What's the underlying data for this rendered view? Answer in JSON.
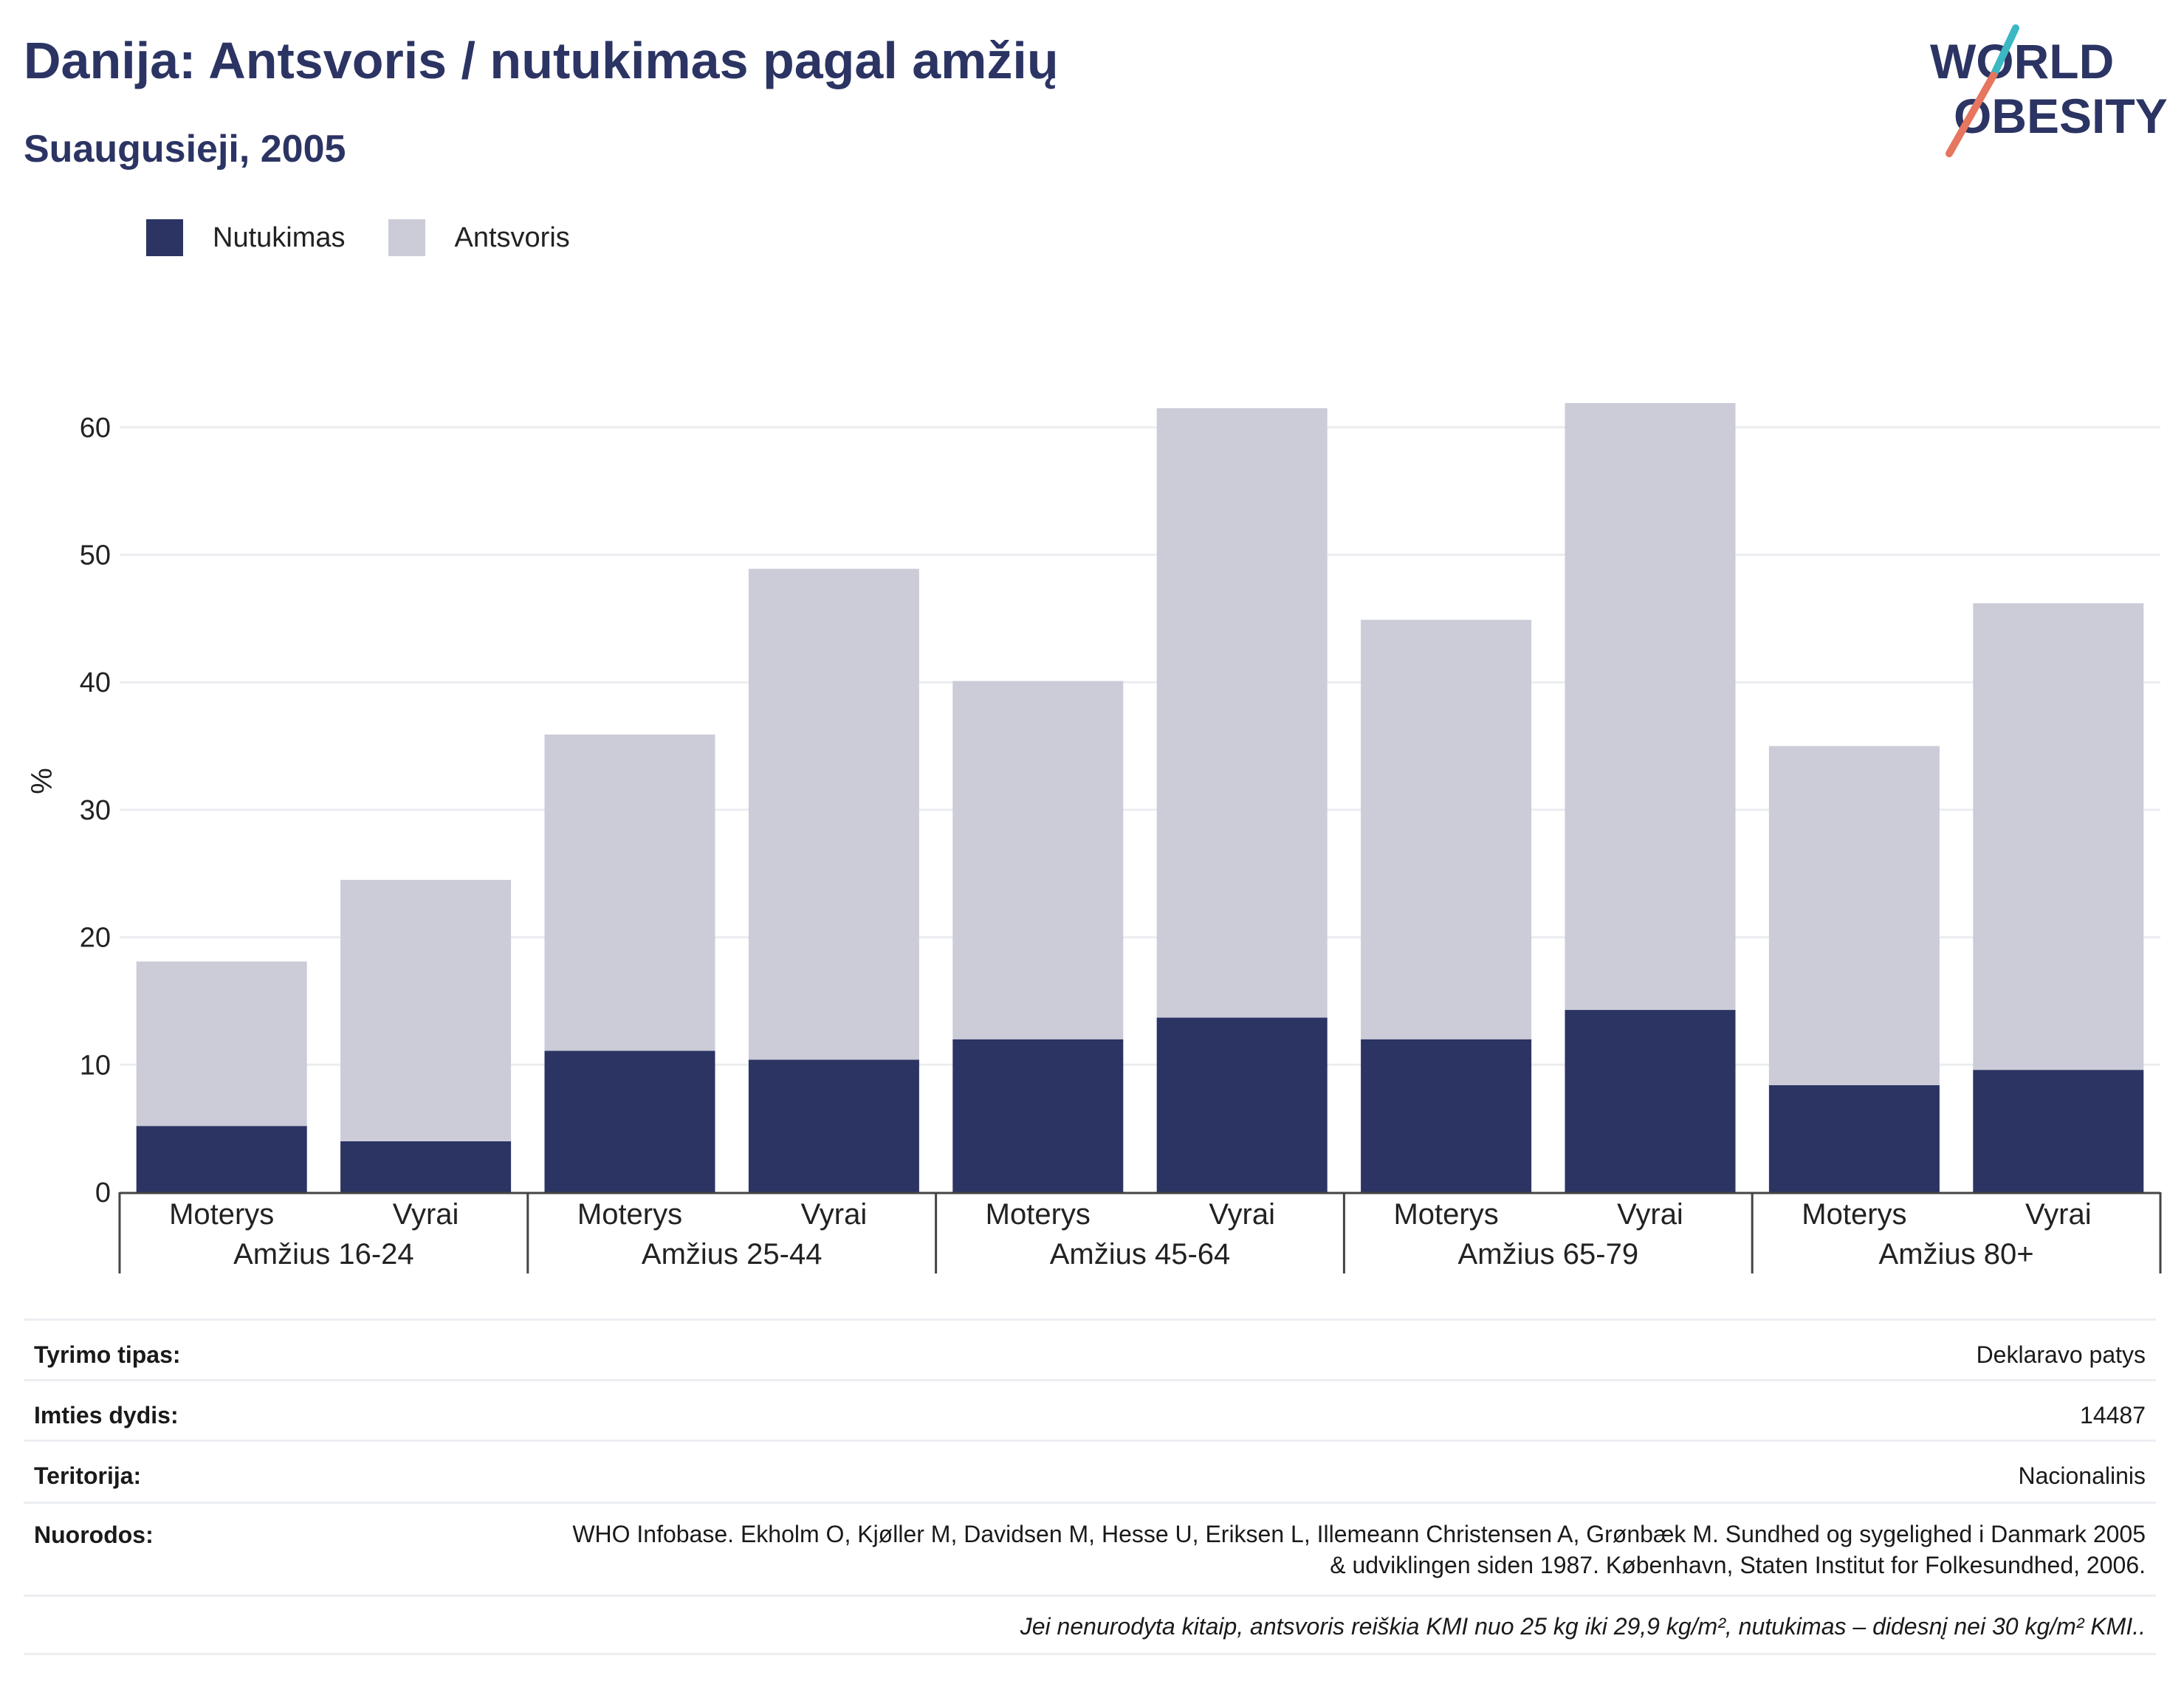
{
  "header": {
    "title": "Danija: Antsvoris / nutukimas pagal amžių",
    "subtitle": "Suaugusieji, 2005",
    "logo_line1": "WORLD",
    "logo_line2": "OBESITY"
  },
  "colors": {
    "obesity": "#2b3463",
    "overweight": "#cbccd8",
    "text": "#2b3463",
    "logo_teal": "#3bb8c3",
    "logo_coral": "#e6765f"
  },
  "chart_data": {
    "type": "bar",
    "stacked": true,
    "title": "",
    "xlabel": "",
    "ylabel": "%",
    "ylim": [
      0,
      70
    ],
    "yticks": [
      0,
      10,
      20,
      30,
      40,
      50,
      60
    ],
    "grid": true,
    "legend_position": "top-left",
    "groups": [
      "Amžius 16-24",
      "Amžius 25-44",
      "Amžius 45-64",
      "Amžius 65-79",
      "Amžius 80+"
    ],
    "categories": [
      "Moterys",
      "Vyrai",
      "Moterys",
      "Vyrai",
      "Moterys",
      "Vyrai",
      "Moterys",
      "Vyrai",
      "Moterys",
      "Vyrai"
    ],
    "series": [
      {
        "name": "Nutukimas",
        "values": [
          5.2,
          4.0,
          11.1,
          10.4,
          12.0,
          13.7,
          12.0,
          14.3,
          8.4,
          9.6
        ]
      },
      {
        "name": "Antsvoris",
        "values": [
          12.9,
          20.5,
          24.8,
          38.5,
          28.1,
          47.8,
          32.9,
          47.6,
          26.6,
          36.6
        ]
      }
    ]
  },
  "info": {
    "rows": [
      {
        "label": "Tyrimo tipas:",
        "value": "Deklaravo patys"
      },
      {
        "label": "Imties dydis:",
        "value": "14487"
      },
      {
        "label": "Teritorija:",
        "value": "Nacionalinis"
      },
      {
        "label": "Nuorodos:",
        "value": "WHO Infobase. Ekholm O, Kjøller M, Davidsen M, Hesse U, Eriksen L, Illemeann Christensen A, Grønbæk M. Sundhed og sygelighed i Danmark 2005 & udviklingen siden 1987. København, Staten Institut for Folkesundhed, 2006."
      }
    ],
    "note": "Jei nenurodyta kitaip, antsvoris reiškia KMI nuo 25 kg iki 29,9 kg/m², nutukimas – didesnį nei 30 kg/m² KMI.."
  }
}
